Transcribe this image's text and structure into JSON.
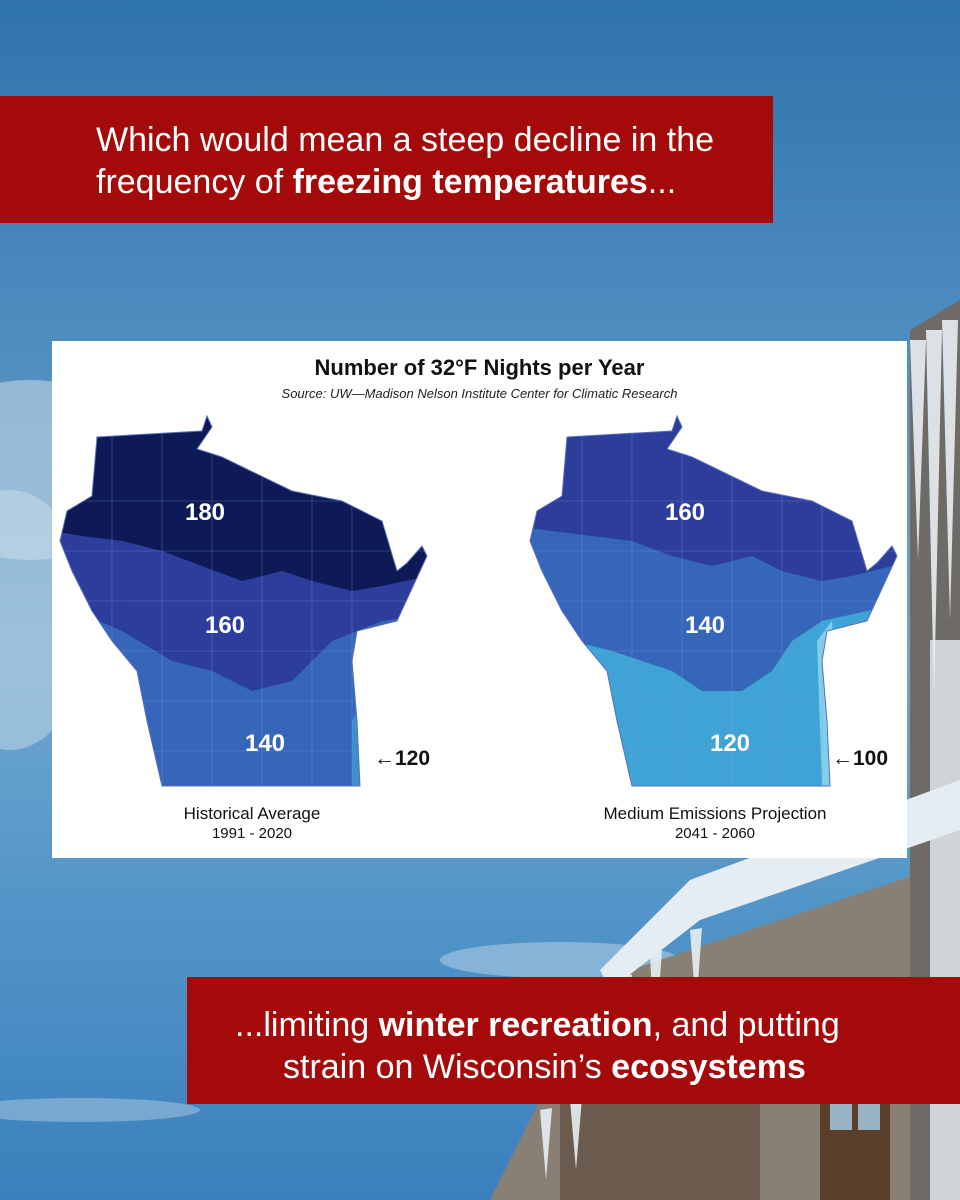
{
  "banner_top": {
    "part1": "Which would mean a steep decline in the",
    "part2": "frequency of ",
    "bold": "freezing temperatures",
    "part3": "..."
  },
  "banner_bottom": {
    "part1": "...limiting ",
    "bold1": "winter recreation",
    "part2": ", and putting",
    "part3": "strain on Wisconsin’s ",
    "bold2": "ecosystems"
  },
  "card": {
    "title": "Number of 32°F Nights per Year",
    "source": "Source: UW—Madison Nelson Institute Center for Climatic Research"
  },
  "maps": [
    {
      "caption": "Historical Average",
      "years": "1991 - 2020",
      "zones": [
        {
          "label": "180",
          "color": "#0d1a55"
        },
        {
          "label": "160",
          "color": "#2c3d9c"
        },
        {
          "label": "140",
          "color": "#3566b9"
        },
        {
          "label": "120",
          "color": "#3e8fcc"
        }
      ],
      "arrow_label": "←120"
    },
    {
      "caption": "Medium Emissions Projection",
      "years": "2041 - 2060",
      "zones": [
        {
          "label": "160",
          "color": "#2c3d9c"
        },
        {
          "label": "140",
          "color": "#3566b9"
        },
        {
          "label": "120",
          "color": "#3fa3d6"
        },
        {
          "label": "100",
          "color": "#7fd0e8"
        }
      ],
      "arrow_label": "←100"
    }
  ]
}
